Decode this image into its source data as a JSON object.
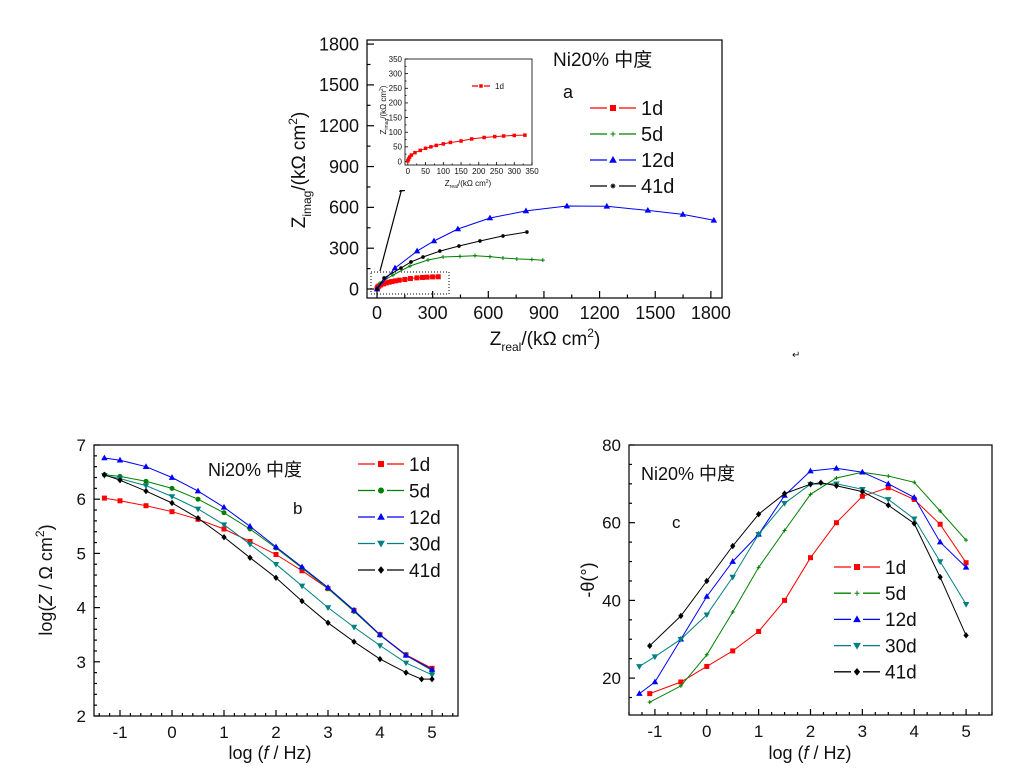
{
  "paragraph_mark": "↵",
  "chart_data": [
    {
      "id": "a",
      "type": "line",
      "title": "Ni20% 中度",
      "panel_label": "a",
      "xlabel": {
        "main": "Z",
        "sub": "real",
        "unit": "/(kΩ cm",
        "sup": "2",
        "close": ")"
      },
      "ylabel": {
        "main": "Z",
        "sub": "imag",
        "unit": "/(kΩ cm",
        "sup": "2",
        "close": ")"
      },
      "xlim": [
        -54,
        1860
      ],
      "ylim": [
        -66,
        1830
      ],
      "xticks": [
        0,
        300,
        600,
        900,
        1200,
        1500,
        1800
      ],
      "yticks": [
        0,
        300,
        600,
        900,
        1200,
        1500,
        1800
      ],
      "grid": false,
      "legend": "top-right",
      "series": [
        {
          "name": "1d",
          "color": "#ff0000",
          "marker": "square",
          "x": [
            0,
            2,
            5,
            10,
            20,
            35,
            50,
            65,
            80,
            100,
            120,
            150,
            180,
            215,
            245,
            270,
            300,
            330
          ],
          "y": [
            2,
            8,
            15,
            22,
            30,
            38,
            45,
            50,
            55,
            60,
            65,
            70,
            77,
            82,
            85,
            87,
            89,
            90
          ]
        },
        {
          "name": "5d",
          "color": "#008000",
          "marker": "plus",
          "x": [
            0,
            16,
            86,
            178,
            275,
            356,
            447,
            528,
            609,
            679,
            754,
            835,
            894
          ],
          "y": [
            0,
            44,
            103,
            169,
            213,
            235,
            240,
            245,
            238,
            228,
            221,
            217,
            212
          ]
        },
        {
          "name": "12d",
          "color": "#0000ff",
          "marker": "triangle-up",
          "x": [
            0,
            97,
            216,
            307,
            436,
            609,
            803,
            1024,
            1239,
            1460,
            1649,
            1816
          ],
          "y": [
            0,
            154,
            279,
            353,
            441,
            522,
            574,
            610,
            608,
            578,
            548,
            505
          ]
        },
        {
          "name": "41d",
          "color": "#000000",
          "marker": "star",
          "x": [
            0,
            38,
            129,
            183,
            248,
            339,
            442,
            555,
            679,
            808
          ],
          "y": [
            0,
            81,
            154,
            199,
            235,
            279,
            316,
            353,
            390,
            419
          ]
        }
      ],
      "inset": {
        "xlabel": {
          "main": "Z",
          "sub": "real",
          "unit": "/(kΩ cm",
          "sup": "2",
          "close": ")"
        },
        "ylabel": {
          "main": "Z",
          "sub": "imag",
          "unit": "/(kΩ cm",
          "sup": "2",
          "close": ")"
        },
        "xlim": [
          -8,
          350
        ],
        "ylim": [
          -12,
          350
        ],
        "xticks": [
          0,
          50,
          100,
          150,
          200,
          250,
          300,
          350
        ],
        "yticks": [
          0,
          50,
          100,
          150,
          200,
          250,
          300,
          350
        ],
        "legend": "top-center",
        "series_ref": "1d"
      }
    },
    {
      "id": "b",
      "type": "line",
      "title": "Ni20%  中度",
      "panel_label": "b",
      "xlabel": {
        "pre": "log (",
        "var": "f",
        "post": " / Hz)"
      },
      "ylabel": {
        "pre": "log(",
        "var": "Z",
        "post": " / Ω cm",
        "sup": "2",
        "close": ")"
      },
      "xlim": [
        -1.5,
        5.5
      ],
      "ylim": [
        2,
        7
      ],
      "xticks": [
        -1,
        0,
        1,
        2,
        3,
        4,
        5
      ],
      "yticks": [
        2,
        3,
        4,
        5,
        6,
        7
      ],
      "grid": false,
      "legend": "top-right",
      "series": [
        {
          "name": "1d",
          "color": "#ff0000",
          "marker": "square",
          "x": [
            -1.3,
            -1,
            -0.5,
            0,
            0.5,
            1,
            1.5,
            2,
            2.5,
            3,
            3.5,
            4,
            4.5,
            5
          ],
          "y": [
            6.02,
            5.97,
            5.88,
            5.77,
            5.63,
            5.45,
            5.22,
            4.98,
            4.68,
            4.35,
            3.95,
            3.5,
            3.13,
            2.88
          ]
        },
        {
          "name": "5d",
          "color": "#008000",
          "marker": "circle",
          "x": [
            -1.3,
            -1,
            -0.5,
            0,
            0.5,
            1,
            1.5,
            2,
            2.5,
            3,
            3.5,
            4,
            4.5,
            5
          ],
          "y": [
            6.45,
            6.42,
            6.33,
            6.2,
            6.0,
            5.75,
            5.45,
            5.1,
            4.73,
            4.35,
            3.93,
            3.49,
            3.12,
            2.84
          ]
        },
        {
          "name": "12d",
          "color": "#0000ff",
          "marker": "triangle-up",
          "x": [
            -1.3,
            -1,
            -0.5,
            0,
            0.5,
            1,
            1.5,
            2,
            2.5,
            3,
            3.5,
            4,
            4.5,
            5
          ],
          "y": [
            6.76,
            6.72,
            6.6,
            6.4,
            6.15,
            5.85,
            5.5,
            5.12,
            4.75,
            4.37,
            3.95,
            3.5,
            3.12,
            2.86
          ]
        },
        {
          "name": "30d",
          "color": "#008080",
          "marker": "triangle-down",
          "x": [
            -1.3,
            -1,
            -0.5,
            0,
            0.5,
            1,
            1.5,
            2,
            2.5,
            3,
            3.5,
            4,
            4.5,
            5
          ],
          "y": [
            6.44,
            6.38,
            6.25,
            6.05,
            5.82,
            5.53,
            5.17,
            4.8,
            4.4,
            4.0,
            3.64,
            3.3,
            2.98,
            2.76
          ]
        },
        {
          "name": "41d",
          "color": "#000000",
          "marker": "diamond",
          "x": [
            -1.3,
            -1,
            -0.5,
            0,
            0.5,
            1,
            1.5,
            2,
            2.5,
            3,
            3.5,
            4,
            4.5,
            4.8,
            5
          ],
          "y": [
            6.45,
            6.35,
            6.15,
            5.93,
            5.65,
            5.3,
            4.92,
            4.55,
            4.12,
            3.72,
            3.37,
            3.05,
            2.8,
            2.68,
            2.68
          ]
        }
      ]
    },
    {
      "id": "c",
      "type": "line",
      "title": "Ni20%  中度",
      "panel_label": "c",
      "xlabel": {
        "pre": "log (",
        "var": "f",
        "post": " / Hz)"
      },
      "ylabel": {
        "text": "-θ(°)"
      },
      "xlim": [
        -1.5,
        5.5
      ],
      "ylim": [
        10.5,
        80
      ],
      "xticks": [
        -1,
        0,
        1,
        2,
        3,
        4,
        5
      ],
      "yticks": [
        20,
        40,
        60,
        80
      ],
      "grid": false,
      "legend": "center-right",
      "series": [
        {
          "name": "1d",
          "color": "#ff0000",
          "marker": "square",
          "x": [
            -1.1,
            -0.5,
            0,
            0.5,
            1,
            1.5,
            2,
            2.5,
            3,
            3.5,
            4,
            4.5,
            5
          ],
          "y": [
            16,
            19,
            23,
            27,
            32,
            40,
            51,
            60,
            66.8,
            69,
            66,
            59.6,
            49.7
          ]
        },
        {
          "name": "5d",
          "color": "#008000",
          "marker": "plus",
          "x": [
            -1.1,
            -0.5,
            0,
            0.5,
            1,
            1.5,
            2,
            2.5,
            3,
            3.5,
            4,
            4.5,
            5
          ],
          "y": [
            13.8,
            18,
            26,
            37,
            48.5,
            58,
            67.3,
            71.5,
            73,
            72,
            70.4,
            63,
            55.5
          ]
        },
        {
          "name": "12d",
          "color": "#0000ff",
          "marker": "triangle-up",
          "x": [
            -1.3,
            -1,
            -0.5,
            0,
            0.5,
            1,
            1.5,
            2,
            2.5,
            3,
            3.5,
            4,
            4.5,
            5
          ],
          "y": [
            16,
            19,
            30,
            41,
            50,
            57,
            67,
            73.3,
            74,
            73,
            70,
            66.5,
            55,
            48.5
          ]
        },
        {
          "name": "30d",
          "color": "#008080",
          "marker": "triangle-down",
          "x": [
            -1.3,
            -1,
            -0.5,
            0,
            0.5,
            1,
            1.5,
            2,
            2.5,
            3,
            3.5,
            4,
            4.5,
            5
          ],
          "y": [
            23,
            25.5,
            30,
            36.3,
            46,
            57,
            65,
            69.9,
            70,
            68.6,
            66,
            61,
            50,
            39
          ]
        },
        {
          "name": "41d",
          "color": "#000000",
          "marker": "diamond",
          "x": [
            -1.1,
            -0.5,
            0,
            0.5,
            1,
            1.5,
            2,
            2.2,
            2.5,
            3,
            3.5,
            4,
            4.5,
            5
          ],
          "y": [
            28.3,
            36,
            45,
            54,
            62.2,
            67.5,
            69.9,
            70.3,
            69.5,
            68,
            64.5,
            59.8,
            46,
            31
          ]
        }
      ]
    }
  ]
}
